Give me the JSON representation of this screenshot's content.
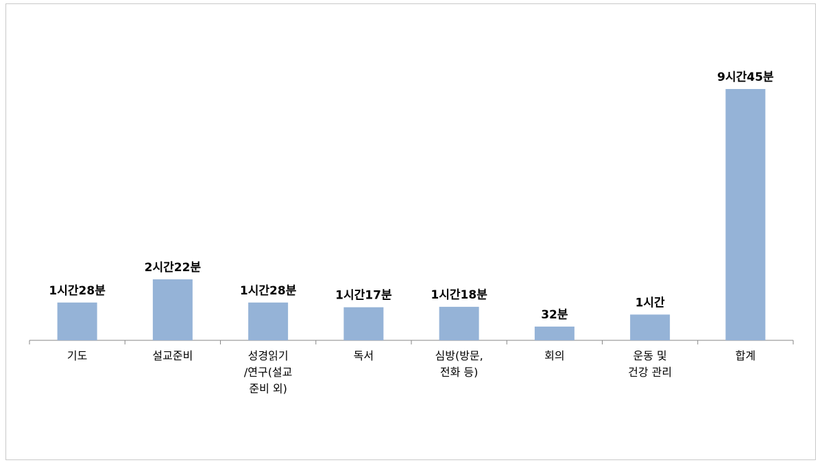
{
  "chart_data": {
    "type": "bar",
    "categories": [
      "기도",
      "설교준비",
      "성경읽기\n/연구(설교\n준비 외)",
      "독서",
      "심방(방문,\n전화 등)",
      "회의",
      "운동 및\n건강 관리",
      "합계"
    ],
    "values": [
      88,
      142,
      88,
      77,
      78,
      32,
      60,
      585
    ],
    "value_labels": [
      "1시간28분",
      "2시간22분",
      "1시간28분",
      "1시간17분",
      "1시간18분",
      "32분",
      "1시간",
      "9시간45분"
    ],
    "color": "#95b3d7"
  }
}
